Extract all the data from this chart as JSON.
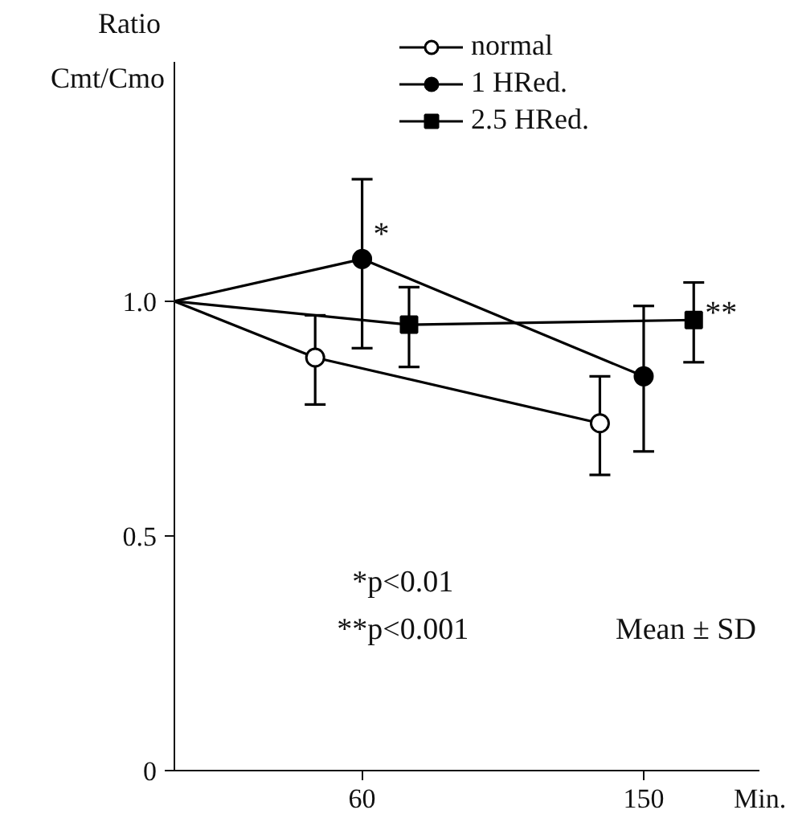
{
  "chart_data": {
    "type": "line",
    "ylabel": "Ratio\nCmt/Cmo",
    "xlabel": "Min.",
    "xlim": [
      0,
      187
    ],
    "ylim": [
      0,
      1.51
    ],
    "xticks": [
      60,
      150
    ],
    "yticks": [
      0,
      0.5,
      {
        "value": 1.0,
        "label": "1.0"
      }
    ],
    "grid": false,
    "legend": "top right",
    "line_style": "solid",
    "series": [
      {
        "name": "normal",
        "color": "#000000",
        "marker": "open circle",
        "x": [
          0,
          45,
          136
        ],
        "values": [
          1.0,
          0.88,
          0.74
        ],
        "errors": [
          null,
          [
            0.78,
            0.97
          ],
          [
            0.63,
            0.84
          ]
        ]
      },
      {
        "name": "1 HRed.",
        "color": "#000000",
        "marker": "circle",
        "x": [
          0,
          60,
          150
        ],
        "values": [
          1.0,
          1.09,
          0.84
        ],
        "errors": [
          null,
          [
            0.9,
            1.26
          ],
          [
            0.68,
            0.99
          ]
        ]
      },
      {
        "name": "2.5 HRed.",
        "color": "#000000",
        "marker": "square",
        "x": [
          0,
          75,
          166
        ],
        "values": [
          1.0,
          0.95,
          0.96
        ],
        "errors": [
          null,
          [
            0.86,
            1.03
          ],
          [
            0.87,
            1.04
          ]
        ]
      }
    ],
    "annotations": [
      {
        "text": "*",
        "x": 60,
        "y": 1.09
      },
      {
        "text": "**",
        "x": 166,
        "y": 0.96
      },
      "*p<0.01",
      "**p<0.001",
      "Mean ± SD"
    ]
  }
}
